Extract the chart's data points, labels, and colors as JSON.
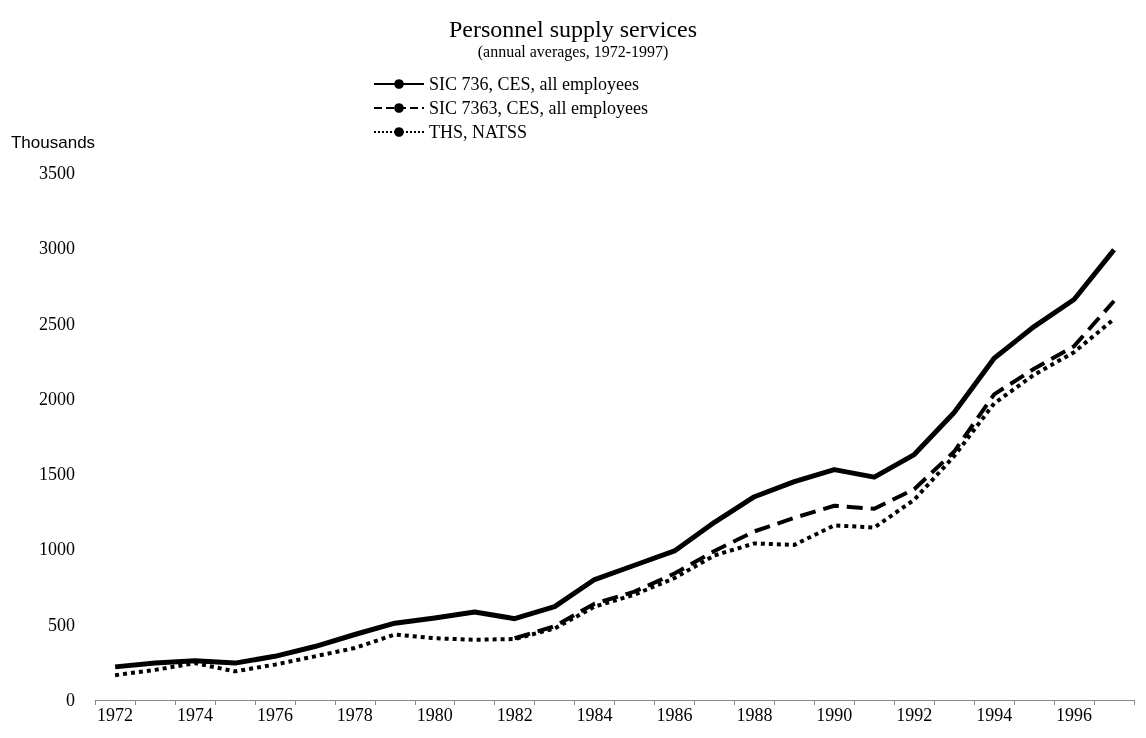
{
  "chart_data": {
    "type": "line",
    "title": "Personnel supply services",
    "subtitle": "(annual averages, 1972-1997)",
    "ylabel": "Thousands",
    "categories": [
      "1972",
      null,
      "1974",
      null,
      "1976",
      null,
      "1978",
      null,
      "1980",
      null,
      "1982",
      null,
      "1984",
      null,
      "1986",
      null,
      "1988",
      null,
      "1990",
      null,
      "1992",
      null,
      "1994",
      null,
      "1996",
      null
    ],
    "series": [
      {
        "name": "SIC 736, CES, all employees",
        "color": "#000000",
        "line_style": "solid",
        "values": [
          220,
          245,
          260,
          245,
          290,
          355,
          435,
          510,
          545,
          585,
          540,
          620,
          800,
          895,
          990,
          1180,
          1350,
          1450,
          1530,
          1480,
          1630,
          1910,
          2270,
          2480,
          2660,
          2990
        ]
      },
      {
        "name": "SIC 7363, CES, all employees",
        "color": "#000000",
        "line_style": "dashed",
        "values": [
          null,
          null,
          null,
          null,
          null,
          null,
          null,
          null,
          null,
          null,
          410,
          490,
          640,
          720,
          840,
          990,
          1120,
          1210,
          1290,
          1270,
          1400,
          1650,
          2030,
          2200,
          2350,
          2650
        ]
      },
      {
        "name": "THS, NATSS",
        "color": "#000000",
        "line_style": "dotted",
        "values": [
          165,
          200,
          245,
          190,
          235,
          290,
          345,
          435,
          410,
          400,
          405,
          475,
          620,
          700,
          810,
          960,
          1040,
          1030,
          1160,
          1145,
          1330,
          1620,
          1970,
          2160,
          2310,
          2530
        ]
      }
    ],
    "ylim": [
      0,
      3500
    ],
    "yticks": [
      0,
      500,
      1000,
      1500,
      2000,
      2500,
      3000,
      3500
    ],
    "grid": false,
    "legend": "top",
    "marker": "none"
  }
}
